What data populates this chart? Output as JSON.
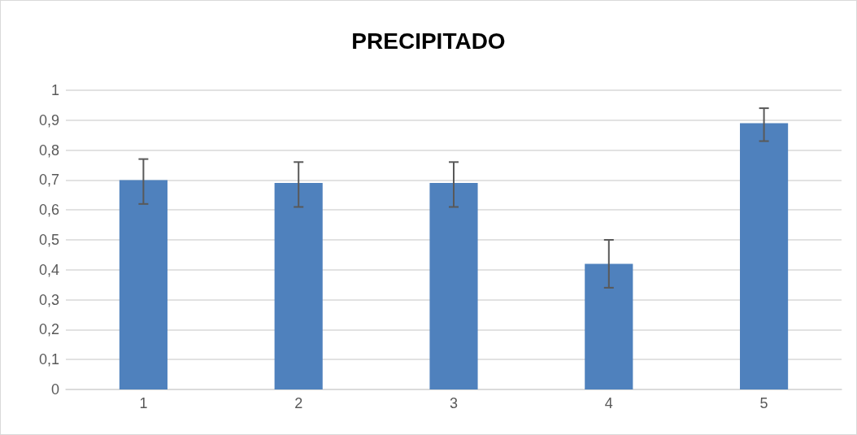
{
  "chart_data": {
    "type": "bar",
    "title": "PRECIPITADO",
    "categories": [
      "1",
      "2",
      "3",
      "4",
      "5"
    ],
    "values": [
      0.7,
      0.69,
      0.69,
      0.42,
      0.89
    ],
    "errors": [
      [
        0.62,
        0.77
      ],
      [
        0.61,
        0.76
      ],
      [
        0.61,
        0.76
      ],
      [
        0.34,
        0.5
      ],
      [
        0.83,
        0.94
      ]
    ],
    "color": "#4f81bd",
    "ylim": [
      0,
      1
    ],
    "yticks": [
      0,
      {
        "value": 0.1,
        "label": "0,1"
      },
      {
        "value": 0.2,
        "label": "0,2"
      },
      {
        "value": 0.3,
        "label": "0,3"
      },
      {
        "value": 0.4,
        "label": "0,4"
      },
      {
        "value": 0.5,
        "label": "0,5"
      },
      {
        "value": 0.6,
        "label": "0,6"
      },
      {
        "value": 0.7,
        "label": "0,7"
      },
      {
        "value": 0.8,
        "label": "0,8"
      },
      {
        "value": 0.9,
        "label": "0,9"
      },
      1
    ],
    "grid": true
  }
}
